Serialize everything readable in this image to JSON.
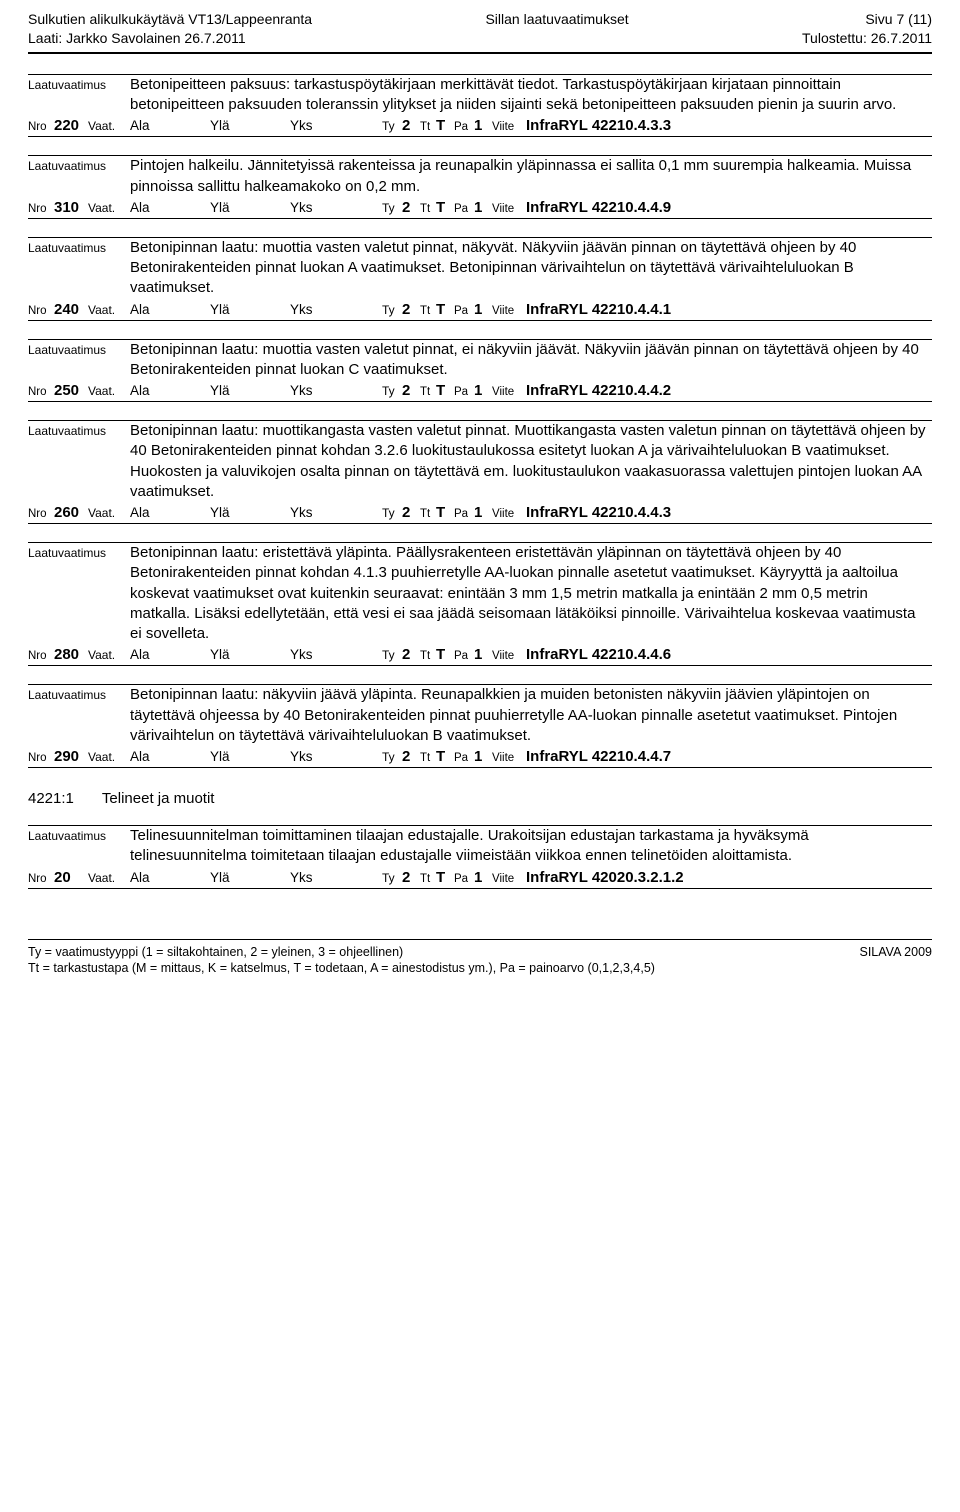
{
  "header": {
    "title_left_1": "Sulkutien alikulkukäytävä  VT13/Lappeenranta",
    "title_left_2": "Laati: Jarkko Savolainen 26.7.2011",
    "title_center": "Sillan laatuvaatimukset",
    "title_right_1": "Sivu 7 (11)",
    "title_right_2": "Tulostettu: 26.7.2011"
  },
  "labels": {
    "laatuvaatimus": "Laatuvaatimus",
    "nro": "Nro",
    "vaat": "Vaat.",
    "ala": "Ala",
    "yla": "Ylä",
    "yks": "Yks",
    "ty": "Ty",
    "tt": "Tt",
    "pa": "Pa",
    "viite": "Viite"
  },
  "entries": [
    {
      "text": "Betonipeitteen paksuus: tarkastuspöytäkirjaan merkittävät tiedot. Tarkastuspöytäkirjaan kirjataan pinnoittain betonipeitteen paksuuden toleranssin ylitykset ja niiden sijainti sekä betonipeitteen paksuuden pienin ja suurin arvo.",
      "nro": "220",
      "ty": "2",
      "tt": "T",
      "pa": "1",
      "viite": "InfraRYL 42210.4.3.3"
    },
    {
      "text": "Pintojen halkeilu. Jännitetyissä rakenteissa ja reunapalkin yläpinnassa ei sallita 0,1 mm suurempia halkeamia. Muissa pinnoissa sallittu halkeamakoko on 0,2 mm.",
      "nro": "310",
      "ty": "2",
      "tt": "T",
      "pa": "1",
      "viite": "InfraRYL 42210.4.4.9"
    },
    {
      "text": "Betonipinnan laatu: muottia vasten valetut pinnat, näkyvät. Näkyviin jäävän pinnan on täytettävä ohjeen by 40 Betonirakenteiden pinnat luokan A vaatimukset. Betonipinnan värivaihtelun on täytettävä värivaihteluluokan B vaatimukset.",
      "nro": "240",
      "ty": "2",
      "tt": "T",
      "pa": "1",
      "viite": "InfraRYL 42210.4.4.1"
    },
    {
      "text": "Betonipinnan laatu: muottia vasten valetut pinnat, ei näkyviin jäävät. Näkyviin jäävän pinnan on täytettävä ohjeen by 40 Betonirakenteiden pinnat luokan C vaatimukset.",
      "nro": "250",
      "ty": "2",
      "tt": "T",
      "pa": "1",
      "viite": "InfraRYL 42210.4.4.2"
    },
    {
      "text": "Betonipinnan laatu: muottikangasta vasten valetut pinnat. Muottikangasta vasten valetun pinnan on täytettävä ohjeen by 40 Betonirakenteiden pinnat kohdan 3.2.6 luokitustaulukossa esitetyt luokan A ja värivaihteluluokan B vaatimukset. Huokosten ja valuvikojen osalta pinnan on täytettävä em. luokitustaulukon  vaakasuorassa valettujen pintojen luokan AA vaatimukset.",
      "nro": "260",
      "ty": "2",
      "tt": "T",
      "pa": "1",
      "viite": "InfraRYL 42210.4.4.3"
    },
    {
      "text": "Betonipinnan laatu: eristettävä yläpinta. Päällysrakenteen eristettävän yläpinnan on täytettävä ohjeen by 40 Betonirakenteiden pinnat kohdan 4.1.3 puuhierretylle AA-luokan pinnalle asetetut vaatimukset. Käyryyttä ja aaltoilua koskevat vaatimukset ovat kuitenkin seuraavat: enintään 3 mm 1,5 metrin matkalla ja enintään 2 mm 0,5 metrin matkalla. Lisäksi edellytetään, että vesi ei saa jäädä seisomaan lätäköiksi pinnoille. Värivaihtelua koskevaa vaatimusta ei sovelleta.",
      "nro": "280",
      "ty": "2",
      "tt": "T",
      "pa": "1",
      "viite": "InfraRYL 42210.4.4.6"
    },
    {
      "text": "Betonipinnan laatu: näkyviin jäävä yläpinta. Reunapalkkien ja muiden betonisten näkyviin jäävien yläpintojen on täytettävä ohjeessa by 40 Betonirakenteiden pinnat puuhierretylle AA-luokan pinnalle asetetut vaatimukset. Pintojen värivaihtelun on täytettävä värivaihteluluokan B vaatimukset.",
      "nro": "290",
      "ty": "2",
      "tt": "T",
      "pa": "1",
      "viite": "InfraRYL 42210.4.4.7"
    }
  ],
  "section": {
    "code": "4221:1",
    "title": "Telineet ja muotit"
  },
  "entries2": [
    {
      "text": "Telinesuunnitelman toimittaminen tilaajan edustajalle. Urakoitsijan edustajan tarkastama ja hyväksymä telinesuunnitelma toimitetaan tilaajan edustajalle viimeistään viikkoa ennen telinetöiden aloittamista.",
      "nro": "20",
      "ty": "2",
      "tt": "T",
      "pa": "1",
      "viite": "InfraRYL 42020.3.2.1.2"
    }
  ],
  "footer": {
    "line1_left": "Ty = vaatimustyyppi (1 = siltakohtainen, 2 = yleinen, 3 = ohjeellinen)",
    "line1_right": "SILAVA 2009",
    "line2_left": "Tt = tarkastustapa (M = mittaus, K = katselmus, T = todetaan, A = ainestodistus ym.), Pa = painoarvo (0,1,2,3,4,5)"
  }
}
